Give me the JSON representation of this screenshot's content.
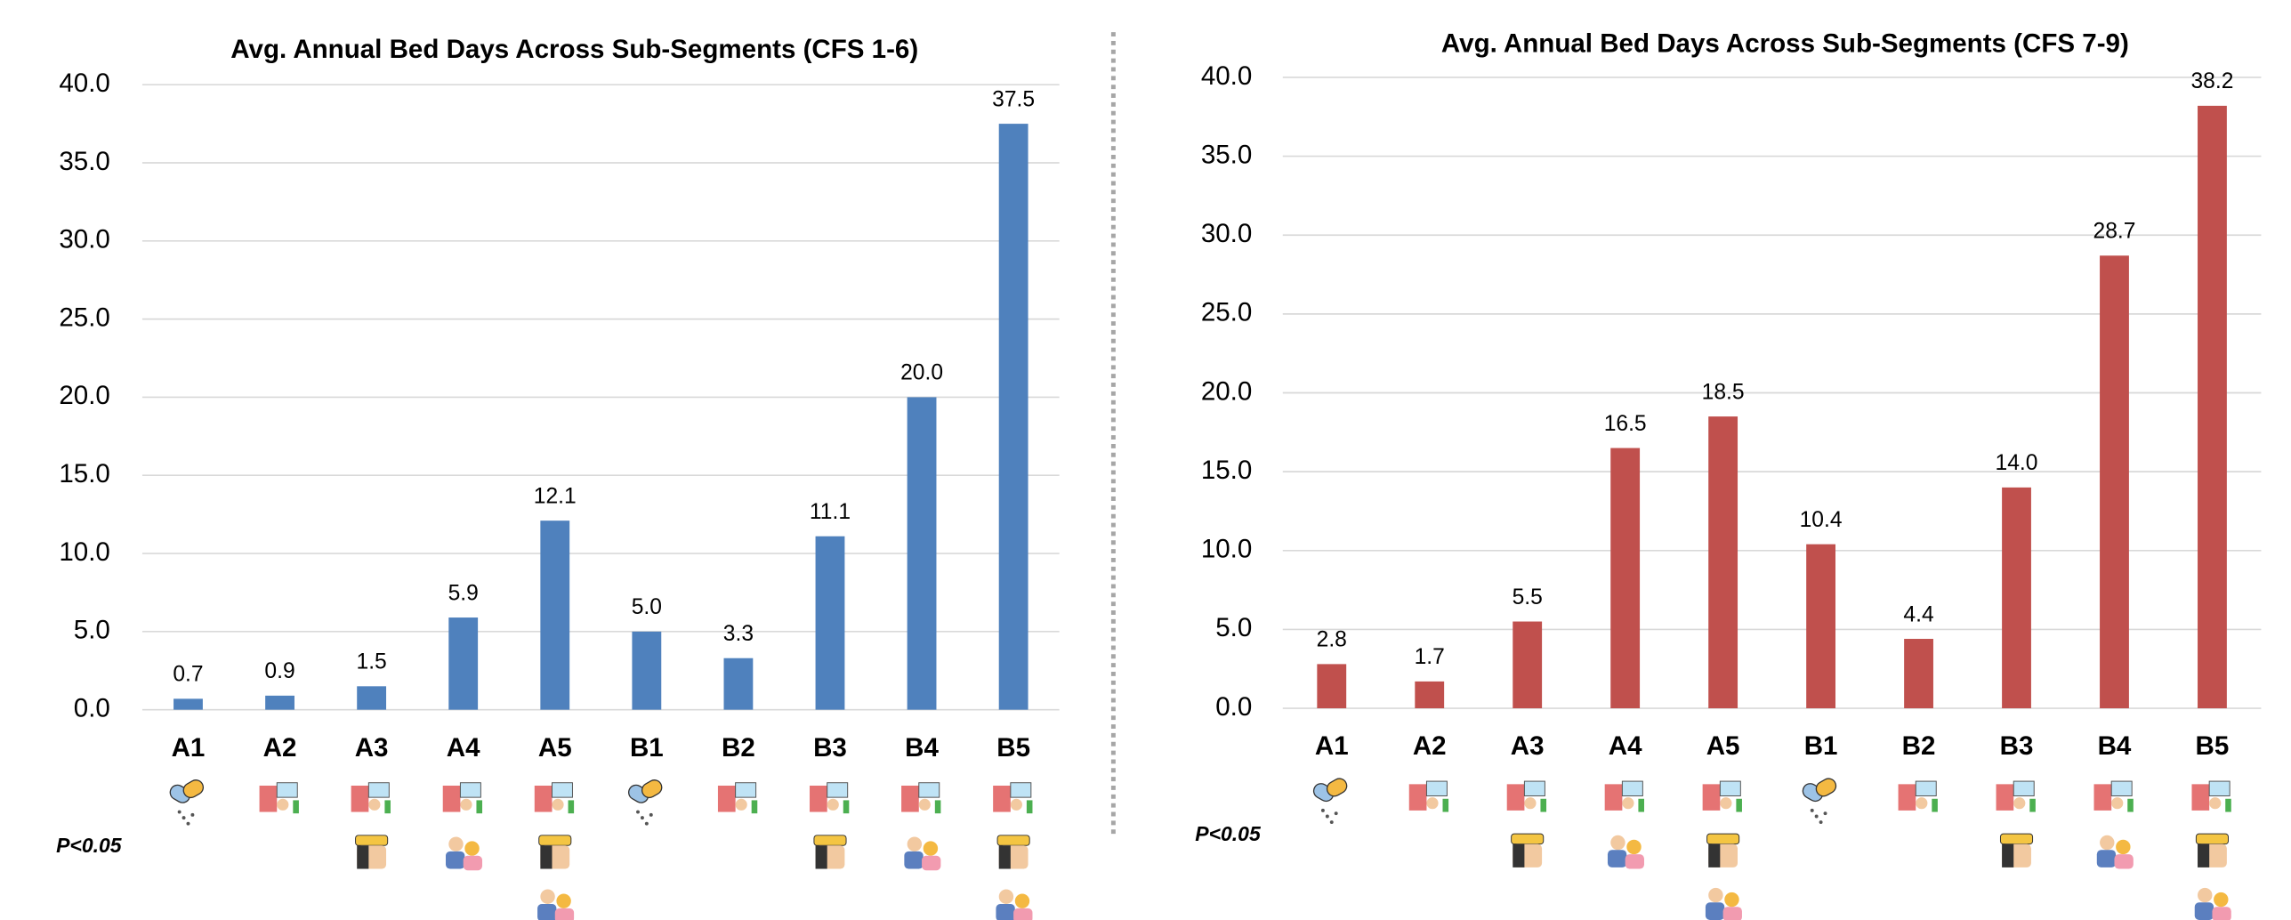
{
  "chart_data": [
    {
      "type": "bar",
      "title": "Avg. Annual Bed Days Across Sub-Segments (CFS 1-6)",
      "categories": [
        "A1",
        "A2",
        "A3",
        "A4",
        "A5",
        "B1",
        "B2",
        "B3",
        "B4",
        "B5"
      ],
      "values": [
        0.7,
        0.9,
        1.5,
        5.9,
        12.1,
        5.0,
        3.3,
        11.1,
        20.0,
        37.5
      ],
      "value_labels": [
        "0.7",
        "0.9",
        "1.5",
        "5.9",
        "12.1",
        "5.0",
        "3.3",
        "11.1",
        "20.0",
        "37.5"
      ],
      "color": "#4f81bd",
      "ylim": [
        0,
        40
      ],
      "yticks": [
        {
          "value": 0,
          "label": "0.0"
        },
        {
          "value": 5,
          "label": "5.0"
        },
        {
          "value": 10,
          "label": "10.0"
        },
        {
          "value": 15,
          "label": "15.0"
        },
        {
          "value": 20,
          "label": "20.0"
        },
        {
          "value": 25,
          "label": "25.0"
        },
        {
          "value": 30,
          "label": "30.0"
        },
        {
          "value": 35,
          "label": "35.0"
        },
        {
          "value": 40,
          "label": "40.0"
        }
      ],
      "grid": true,
      "annotation": "P<0.05"
    },
    {
      "type": "bar",
      "title": "Avg. Annual Bed Days Across Sub-Segments (CFS 7-9)",
      "categories": [
        "A1",
        "A2",
        "A3",
        "A4",
        "A5",
        "B1",
        "B2",
        "B3",
        "B4",
        "B5"
      ],
      "values": [
        2.8,
        1.7,
        5.5,
        16.5,
        18.5,
        10.4,
        4.4,
        14.0,
        28.7,
        38.2
      ],
      "value_labels": [
        "2.8",
        "1.7",
        "5.5",
        "16.5",
        "18.5",
        "10.4",
        "4.4",
        "14.0",
        "28.7",
        "38.2"
      ],
      "color": "#c0504d",
      "ylim": [
        0,
        40
      ],
      "yticks": [
        {
          "value": 0,
          "label": "0.0"
        },
        {
          "value": 5,
          "label": "5.0"
        },
        {
          "value": 10,
          "label": "10.0"
        },
        {
          "value": 15,
          "label": "15.0"
        },
        {
          "value": 20,
          "label": "20.0"
        },
        {
          "value": 25,
          "label": "25.0"
        },
        {
          "value": 30,
          "label": "30.0"
        },
        {
          "value": 35,
          "label": "35.0"
        },
        {
          "value": 40,
          "label": "40.0"
        }
      ],
      "grid": true,
      "annotation": "P<0.05"
    }
  ]
}
